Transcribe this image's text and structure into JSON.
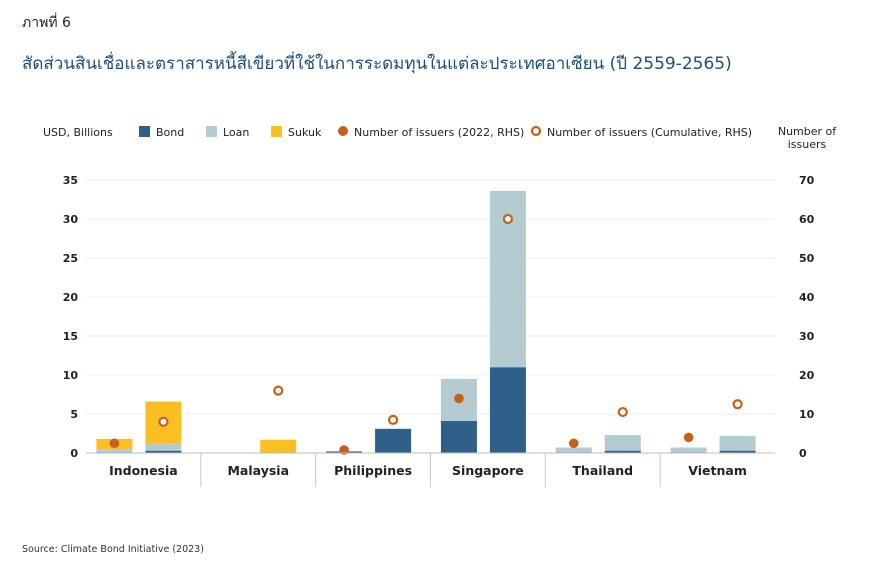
{
  "figure_label": "ภาพที่ 6",
  "title": "สัดส่วนสินเชื่อและตราสารหนี้สีเขียวที่ใช้ในการระดมทุนในแต่ละประเทศอาเซียน (ปี 2559-2565)",
  "source": "Source: Climate Bond Initiative (2023)",
  "colors": {
    "bond": "#2e6089",
    "loan": "#b4cbd2",
    "sukuk": "#fbbf24",
    "issuers": "#c8601a"
  },
  "chart_data": {
    "type": "bar",
    "stacked": true,
    "ylabel_left": "USD, Billions",
    "ylabel_right": "Number of issuers",
    "ylim_left": [
      0,
      35
    ],
    "ylim_right": [
      0,
      70
    ],
    "yticks_left": [
      "0",
      "5",
      "10",
      "15",
      "20",
      "25",
      "30",
      "35"
    ],
    "yticks_right": [
      "0",
      "10",
      "20",
      "30",
      "40",
      "50",
      "60",
      "70"
    ],
    "grid": true,
    "legend_position": "top",
    "categories": [
      "Indonesia",
      "Malaysia",
      "Philippines",
      "Singapore",
      "Thailand",
      "Vietnam"
    ],
    "groups": [
      {
        "country": "Indonesia",
        "bars": [
          {
            "bond": 0.1,
            "loan": 0.4,
            "sukuk": 1.3
          },
          {
            "bond": 0.3,
            "loan": 0.9,
            "sukuk": 5.4
          }
        ]
      },
      {
        "country": "Malaysia",
        "bars": [
          {
            "bond": 0.0,
            "loan": 0.0,
            "sukuk": 0.0
          },
          {
            "bond": 0.0,
            "loan": 0.0,
            "sukuk": 1.7
          }
        ]
      },
      {
        "country": "Philippines",
        "bars": [
          {
            "bond": 0.2,
            "loan": 0.0,
            "sukuk": 0.0
          },
          {
            "bond": 3.1,
            "loan": 0.0,
            "sukuk": 0.0
          }
        ]
      },
      {
        "country": "Singapore",
        "bars": [
          {
            "bond": 4.1,
            "loan": 5.4,
            "sukuk": 0.0
          },
          {
            "bond": 11.0,
            "loan": 22.6,
            "sukuk": 0.0
          }
        ]
      },
      {
        "country": "Thailand",
        "bars": [
          {
            "bond": 0.1,
            "loan": 0.6,
            "sukuk": 0.0
          },
          {
            "bond": 0.3,
            "loan": 2.0,
            "sukuk": 0.0
          }
        ]
      },
      {
        "country": "Vietnam",
        "bars": [
          {
            "bond": 0.1,
            "loan": 0.6,
            "sukuk": 0.0
          },
          {
            "bond": 0.3,
            "loan": 1.9,
            "sukuk": 0.0
          }
        ]
      }
    ],
    "series": [
      {
        "name": "Bond",
        "key": "bond",
        "kind": "bar"
      },
      {
        "name": "Loan",
        "key": "loan",
        "kind": "bar"
      },
      {
        "name": "Sukuk",
        "key": "sukuk",
        "kind": "bar"
      },
      {
        "name": "Number of issuers (2022, RHS)",
        "kind": "point",
        "axis": "right",
        "values": [
          2.5,
          null,
          0.8,
          14,
          2.5,
          4
        ]
      },
      {
        "name": "Number of issuers (Cumulative, RHS)",
        "kind": "point",
        "axis": "right",
        "values": [
          8,
          16,
          8.5,
          60,
          10.5,
          12.5
        ]
      }
    ]
  }
}
